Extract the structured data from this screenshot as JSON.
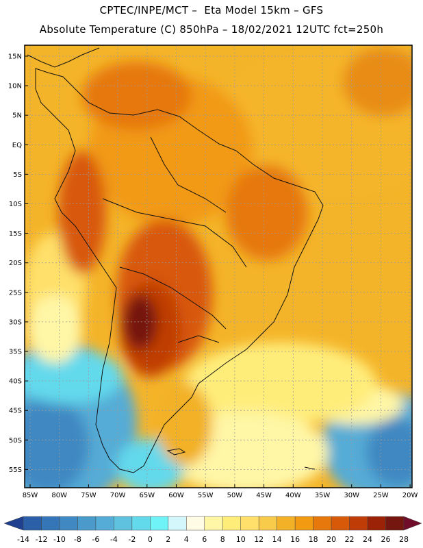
{
  "header": {
    "line1": "CPTEC/INPE/MCT –  Eta Model 15km – GFS",
    "line2": "Absolute Temperature (C) 850hPa – 18/02/2021 12UTC fct=250h"
  },
  "axes": {
    "lat_labels": [
      "15N",
      "10N",
      "5N",
      "EQ",
      "5S",
      "10S",
      "15S",
      "20S",
      "25S",
      "30S",
      "35S",
      "40S",
      "45S",
      "50S",
      "55S"
    ],
    "lon_labels": [
      "85W",
      "80W",
      "75W",
      "70W",
      "65W",
      "60W",
      "55W",
      "50W",
      "45W",
      "40W",
      "35W",
      "30W",
      "25W",
      "20W"
    ]
  },
  "colorbar": {
    "values": [
      "-14",
      "-12",
      "-10",
      "-8",
      "-6",
      "-4",
      "-2",
      "0",
      "2",
      "4",
      "6",
      "8",
      "10",
      "12",
      "14",
      "16",
      "18",
      "20",
      "22",
      "24",
      "26",
      "28"
    ],
    "colors": [
      "#1f3f8f",
      "#2b5fa8",
      "#3576b8",
      "#3f88c2",
      "#4a9bcb",
      "#55acd6",
      "#5fc3e0",
      "#63d9ec",
      "#6ff3f7",
      "#d4f7fb",
      "#fffbe5",
      "#fff6a6",
      "#ffed7a",
      "#ffe06a",
      "#f8cb4a",
      "#f2b127",
      "#f29a12",
      "#e6780c",
      "#d85908",
      "#c03c06",
      "#9b2207",
      "#751610",
      "#6f0d2a"
    ]
  },
  "palette": {
    "frame": "#000000",
    "grid": "#9a9a9a",
    "land_border": "#111111"
  }
}
